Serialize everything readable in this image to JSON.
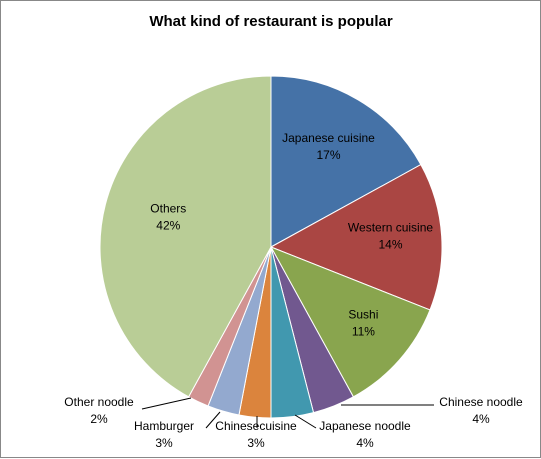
{
  "chart_data": {
    "type": "pie",
    "title": "What kind of restaurant is popular",
    "unit": "%",
    "slices": [
      {
        "label": "Japanese cuisine",
        "value": 17,
        "display": "17%",
        "color": "#4572A7"
      },
      {
        "label": "Western cuisine",
        "value": 14,
        "display": "14%",
        "color": "#AA4643"
      },
      {
        "label": "Sushi",
        "value": 11,
        "display": "11%",
        "color": "#89A54E"
      },
      {
        "label": "Chinese noodle",
        "value": 4,
        "display": "4%",
        "color": "#71588F"
      },
      {
        "label": "Japanese noodle",
        "value": 4,
        "display": "4%",
        "color": "#4198AF"
      },
      {
        "label": "Chinesecuisine",
        "value": 3,
        "display": "3%",
        "color": "#DB843D"
      },
      {
        "label": "Hamburger",
        "value": 3,
        "display": "3%",
        "color": "#93A9CF"
      },
      {
        "label": "Other noodle",
        "value": 2,
        "display": "2%",
        "color": "#D19392"
      },
      {
        "label": "Others",
        "value": 42,
        "display": "42%",
        "color": "#B9CD96"
      }
    ],
    "legend": "none",
    "data_labels": "category name and percentage"
  }
}
